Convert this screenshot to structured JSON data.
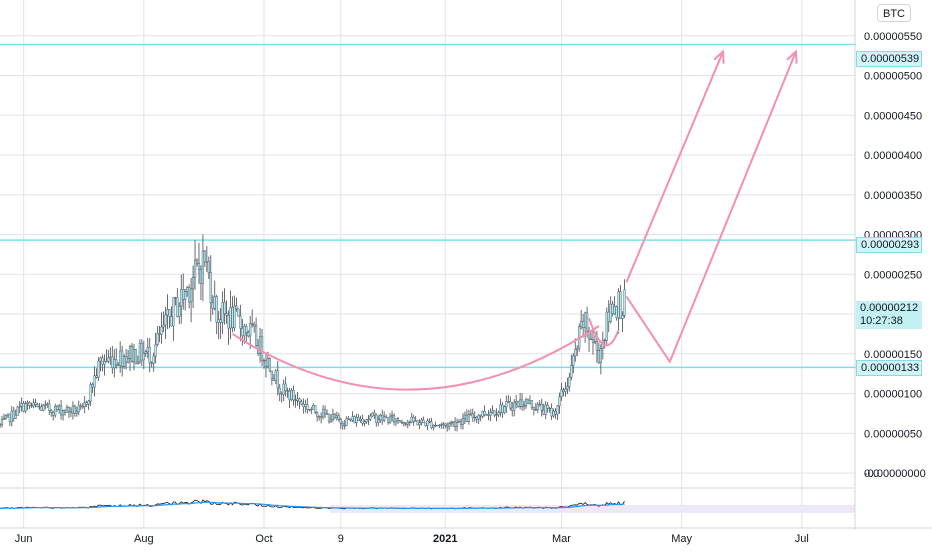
{
  "symbol": {
    "currency": "BTC"
  },
  "price_scale": {
    "ticks": [
      "0.0",
      "0.00000550",
      "0.00000500",
      "0.00000450",
      "0.00000400",
      "0.00000350",
      "0.00000300",
      "0.00000250",
      "0.00000200",
      "0.00000150",
      "0.00000100",
      "0.00000050",
      "-0.00000000"
    ]
  },
  "level_labels": {
    "resistance_high": "0.00000539",
    "resistance_mid": "0.00000293",
    "support": "0.00000133"
  },
  "last_price": {
    "value": "0.00000212",
    "countdown": "10:27:38"
  },
  "time_axis": {
    "labels": [
      "Jun",
      "Aug",
      "Oct",
      "9",
      "2021",
      "Mar",
      "May",
      "Jul"
    ]
  },
  "colors": {
    "candle_body": "#b2ebf2",
    "candle_wick": "#434651",
    "horizontal_level": "#80deea",
    "drawing": "#f48fb1",
    "oscillator_line": "#131722",
    "oscillator_signal": "#2196f3",
    "oscillator_band": "#ede7f6",
    "grid": "#e1e3ea"
  },
  "chart_data": {
    "type": "candlestick",
    "title": "",
    "xlabel": "",
    "ylabel": "",
    "x_range": [
      "2020-05-20",
      "2021-07-28"
    ],
    "ylim": [
      -1.5e-07,
      5.95e-06
    ],
    "grid": true,
    "x_ticks": [
      {
        "label": "Jun",
        "date": "2020-06-01"
      },
      {
        "label": "Aug",
        "date": "2020-08-01"
      },
      {
        "label": "Oct",
        "date": "2020-10-01"
      },
      {
        "label": "9",
        "date": "2020-11-09"
      },
      {
        "label": "2021",
        "date": "2021-01-01"
      },
      {
        "label": "Mar",
        "date": "2021-03-01"
      },
      {
        "label": "May",
        "date": "2021-05-01"
      },
      {
        "label": "Jul",
        "date": "2021-07-01"
      }
    ],
    "price_series": [
      {
        "date": "2020-05-20",
        "close": 6e-07
      },
      {
        "date": "2020-06-01",
        "close": 8.5e-07
      },
      {
        "date": "2020-06-15",
        "close": 8e-07
      },
      {
        "date": "2020-07-01",
        "close": 7.8e-07
      },
      {
        "date": "2020-07-10",
        "close": 1.4e-06
      },
      {
        "date": "2020-07-25",
        "close": 1.5e-06
      },
      {
        "date": "2020-08-05",
        "close": 1.5e-06
      },
      {
        "date": "2020-08-15",
        "close": 2e-06
      },
      {
        "date": "2020-08-25",
        "close": 2.4e-06
      },
      {
        "date": "2020-09-01",
        "close": 2.7e-06
      },
      {
        "date": "2020-09-07",
        "close": 2e-06
      },
      {
        "date": "2020-09-15",
        "close": 1.95e-06
      },
      {
        "date": "2020-09-25",
        "close": 1.75e-06
      },
      {
        "date": "2020-10-01",
        "close": 1.5e-06
      },
      {
        "date": "2020-10-10",
        "close": 1.05e-06
      },
      {
        "date": "2020-10-25",
        "close": 8e-07
      },
      {
        "date": "2020-11-09",
        "close": 6.5e-07
      },
      {
        "date": "2020-11-25",
        "close": 7e-07
      },
      {
        "date": "2020-12-15",
        "close": 6.5e-07
      },
      {
        "date": "2021-01-01",
        "close": 6e-07
      },
      {
        "date": "2021-01-20",
        "close": 7.5e-07
      },
      {
        "date": "2021-02-10",
        "close": 9e-07
      },
      {
        "date": "2021-02-25",
        "close": 7.5e-07
      },
      {
        "date": "2021-03-05",
        "close": 1.2e-06
      },
      {
        "date": "2021-03-12",
        "close": 1.9e-06
      },
      {
        "date": "2021-03-20",
        "close": 1.5e-06
      },
      {
        "date": "2021-03-27",
        "close": 2.15e-06
      },
      {
        "date": "2021-04-02",
        "close": 2.12e-06
      }
    ],
    "horizontal_levels": [
      5.39e-06,
      2.93e-06,
      1.33e-06
    ],
    "cup_curve": [
      {
        "date": "2020-09-15",
        "price": 1.75e-06
      },
      {
        "date": "2020-12-15",
        "price": 3e-07
      },
      {
        "date": "2021-03-20",
        "price": 1.85e-06
      }
    ],
    "handle_curve": [
      {
        "date": "2021-03-15",
        "price": 1.95e-06
      },
      {
        "date": "2021-03-23",
        "price": 1.35e-06
      },
      {
        "date": "2021-03-30",
        "price": 1.8e-06
      }
    ],
    "projection_arrows": [
      [
        {
          "date": "2021-04-03",
          "price": 2.4e-06
        },
        {
          "date": "2021-05-22",
          "price": 5.3e-06
        }
      ],
      [
        {
          "date": "2021-04-03",
          "price": 2.22e-06
        },
        {
          "date": "2021-04-25",
          "price": 1.4e-06
        },
        {
          "date": "2021-06-28",
          "price": 5.3e-06
        }
      ]
    ]
  }
}
